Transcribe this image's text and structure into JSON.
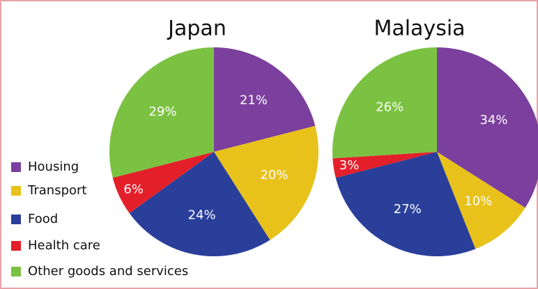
{
  "chart_data": [
    {
      "type": "pie",
      "title": "Japan",
      "categories": [
        "Housing",
        "Transport",
        "Food",
        "Health care",
        "Other goods and services"
      ],
      "values": [
        21,
        20,
        24,
        6,
        29
      ],
      "value_labels": [
        "21%",
        "20%",
        "24%",
        "6%",
        "29%"
      ],
      "colors": [
        "#7b3f9e",
        "#e8c21a",
        "#2a3f9a",
        "#e3202a",
        "#7cc242"
      ]
    },
    {
      "type": "pie",
      "title": "Malaysia",
      "categories": [
        "Housing",
        "Transport",
        "Food",
        "Health care",
        "Other goods and services"
      ],
      "values": [
        34,
        10,
        27,
        3,
        26
      ],
      "value_labels": [
        "34%",
        "10%",
        "27%",
        "3%",
        "26%"
      ],
      "colors": [
        "#7b3f9e",
        "#e8c21a",
        "#2a3f9a",
        "#e3202a",
        "#7cc242"
      ]
    }
  ]
}
